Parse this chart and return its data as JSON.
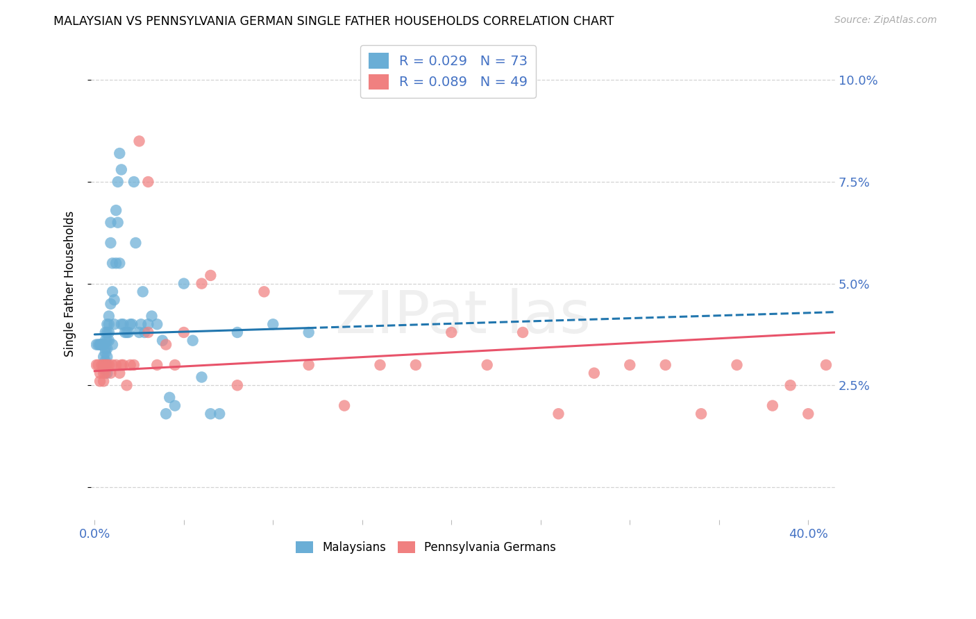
{
  "title": "MALAYSIAN VS PENNSYLVANIA GERMAN SINGLE FATHER HOUSEHOLDS CORRELATION CHART",
  "source": "Source: ZipAtlas.com",
  "ylabel": "Single Father Households",
  "xlim": [
    -0.002,
    0.415
  ],
  "ylim": [
    -0.008,
    0.108
  ],
  "ytick_vals": [
    0.0,
    0.025,
    0.05,
    0.075,
    0.1
  ],
  "ytick_labels": [
    "",
    "2.5%",
    "5.0%",
    "7.5%",
    "10.0%"
  ],
  "xtick_left_label": "0.0%",
  "xtick_right_label": "40.0%",
  "blue_color": "#6aaed6",
  "pink_color": "#f08080",
  "line_blue": "#2176ae",
  "line_pink": "#e8536a",
  "axis_label_color": "#4472c4",
  "grid_color": "#d3d3d3",
  "background": "#ffffff",
  "malay_R": "0.029",
  "malay_N": "73",
  "penn_R": "0.089",
  "penn_N": "49",
  "legend1_label": "R = 0.029   N = 73",
  "legend2_label": "R = 0.089   N = 49",
  "legend3_label": "Malaysians",
  "legend4_label": "Pennsylvania Germans",
  "malay_x": [
    0.001,
    0.002,
    0.003,
    0.003,
    0.004,
    0.004,
    0.004,
    0.005,
    0.005,
    0.005,
    0.005,
    0.005,
    0.005,
    0.006,
    0.006,
    0.006,
    0.006,
    0.006,
    0.006,
    0.007,
    0.007,
    0.007,
    0.007,
    0.007,
    0.007,
    0.007,
    0.008,
    0.008,
    0.008,
    0.008,
    0.009,
    0.009,
    0.009,
    0.01,
    0.01,
    0.01,
    0.011,
    0.011,
    0.012,
    0.012,
    0.013,
    0.013,
    0.014,
    0.014,
    0.015,
    0.015,
    0.016,
    0.017,
    0.018,
    0.019,
    0.02,
    0.021,
    0.022,
    0.023,
    0.025,
    0.026,
    0.027,
    0.028,
    0.03,
    0.032,
    0.035,
    0.038,
    0.04,
    0.042,
    0.045,
    0.05,
    0.055,
    0.06,
    0.065,
    0.07,
    0.08,
    0.1,
    0.12
  ],
  "malay_y": [
    0.035,
    0.035,
    0.035,
    0.035,
    0.035,
    0.035,
    0.035,
    0.035,
    0.035,
    0.035,
    0.032,
    0.03,
    0.029,
    0.038,
    0.036,
    0.034,
    0.033,
    0.031,
    0.029,
    0.04,
    0.038,
    0.036,
    0.034,
    0.032,
    0.03,
    0.028,
    0.042,
    0.04,
    0.038,
    0.036,
    0.065,
    0.06,
    0.045,
    0.055,
    0.048,
    0.035,
    0.046,
    0.04,
    0.068,
    0.055,
    0.075,
    0.065,
    0.082,
    0.055,
    0.078,
    0.04,
    0.04,
    0.038,
    0.038,
    0.038,
    0.04,
    0.04,
    0.075,
    0.06,
    0.038,
    0.04,
    0.048,
    0.038,
    0.04,
    0.042,
    0.04,
    0.036,
    0.018,
    0.022,
    0.02,
    0.05,
    0.036,
    0.027,
    0.018,
    0.018,
    0.038,
    0.04,
    0.038
  ],
  "penn_x": [
    0.001,
    0.002,
    0.003,
    0.003,
    0.004,
    0.005,
    0.005,
    0.005,
    0.006,
    0.006,
    0.007,
    0.008,
    0.009,
    0.01,
    0.012,
    0.014,
    0.015,
    0.016,
    0.018,
    0.02,
    0.022,
    0.025,
    0.03,
    0.03,
    0.035,
    0.04,
    0.045,
    0.05,
    0.06,
    0.065,
    0.08,
    0.095,
    0.12,
    0.14,
    0.16,
    0.18,
    0.2,
    0.22,
    0.24,
    0.26,
    0.28,
    0.3,
    0.32,
    0.34,
    0.36,
    0.38,
    0.4,
    0.39,
    0.41
  ],
  "penn_y": [
    0.03,
    0.03,
    0.028,
    0.026,
    0.03,
    0.03,
    0.028,
    0.026,
    0.03,
    0.028,
    0.03,
    0.03,
    0.028,
    0.03,
    0.03,
    0.028,
    0.03,
    0.03,
    0.025,
    0.03,
    0.03,
    0.085,
    0.075,
    0.038,
    0.03,
    0.035,
    0.03,
    0.038,
    0.05,
    0.052,
    0.025,
    0.048,
    0.03,
    0.02,
    0.03,
    0.03,
    0.038,
    0.03,
    0.038,
    0.018,
    0.028,
    0.03,
    0.03,
    0.018,
    0.03,
    0.02,
    0.018,
    0.025,
    0.03
  ],
  "malay_line_x_solid_start": 0.0,
  "malay_line_x_solid_end": 0.12,
  "malay_line_x_dash_end": 0.415,
  "malay_line_y_at_0": 0.0375,
  "malay_line_y_at_012": 0.039,
  "malay_line_y_at_end": 0.043,
  "penn_line_y_at_0": 0.0285,
  "penn_line_y_at_end": 0.038
}
